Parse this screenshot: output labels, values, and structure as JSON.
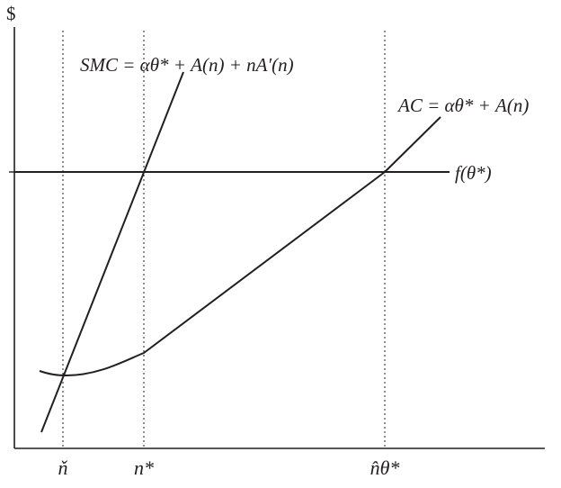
{
  "figure": {
    "y_axis_label": "$",
    "curves": {
      "smc_label": "SMC = αθ* + A(n) + nA′(n)",
      "ac_label": "AC = αθ* + A(n)",
      "f_label": "f(θ*)"
    },
    "x_ticks": {
      "n_check": "ň",
      "n_star": "n*",
      "n_hat": "n̂θ*"
    }
  },
  "colors": {
    "ink": "#231f20",
    "background": "#ffffff"
  }
}
